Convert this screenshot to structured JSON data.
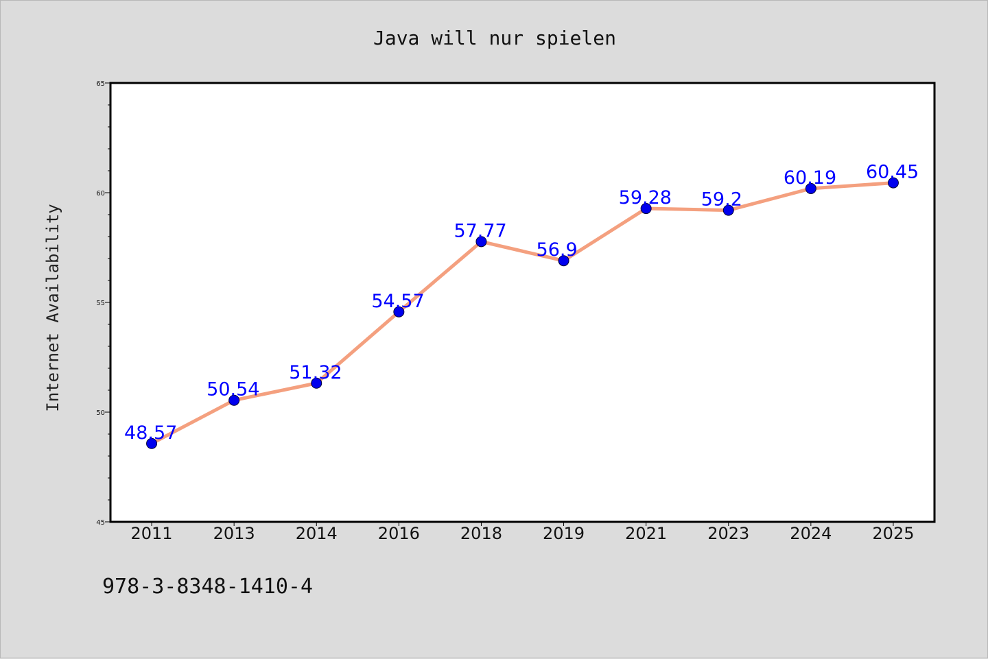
{
  "chart_data": {
    "type": "line",
    "title": "Java will nur spielen",
    "xlabel": "",
    "ylabel": "Internet Availability",
    "categories": [
      "2011",
      "2013",
      "2014",
      "2016",
      "2018",
      "2019",
      "2021",
      "2023",
      "2024",
      "2025"
    ],
    "series": [
      {
        "values": [
          48.57,
          50.54,
          51.32,
          54.57,
          57.77,
          56.9,
          59.28,
          59.2,
          60.19,
          60.45
        ],
        "data_labels": [
          "48.57",
          "50.54",
          "51.32",
          "54.57",
          "57.77",
          "56.9",
          "59.28",
          "59.2",
          "60.19",
          "60.45"
        ],
        "line_color": "#f4a07f",
        "marker_color": "#0000ee"
      }
    ],
    "ylim": [
      45,
      65
    ],
    "yticks": [
      "45",
      "50",
      "55",
      "60",
      "65"
    ],
    "grid": false,
    "legend": "none"
  },
  "annotation": "978-3-8348-1410-4",
  "colors": {
    "background": "#dcdcdc",
    "plot_area": "#ffffff",
    "axis": "#000000",
    "data_label": "#0000ff"
  }
}
